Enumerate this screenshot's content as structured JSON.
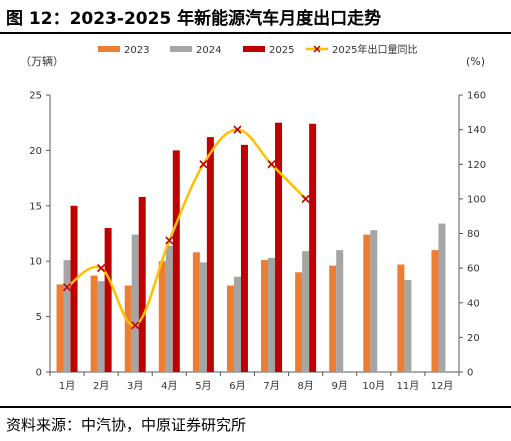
{
  "header": {
    "title": "图 12：2023-2025 年新能源汽车月度出口走势"
  },
  "footer": {
    "source": "资料来源：中汽协，中原证券研究所"
  },
  "colors": {
    "y2023": "#ED7D31",
    "y2024": "#A5A5A5",
    "y2025": "#C00000",
    "ratio_line": "#FFC000",
    "ratio_marker": "#C00000"
  },
  "chart_data": {
    "type": "bar",
    "title": "",
    "categories": [
      "1月",
      "2月",
      "3月",
      "4月",
      "5月",
      "6月",
      "7月",
      "8月",
      "9月",
      "10月",
      "11月",
      "12月"
    ],
    "y_left_unit": "（万辆）",
    "y_right_unit": "(%)",
    "ylim_left": [
      0,
      25
    ],
    "ylim_right": [
      0,
      160
    ],
    "yticks_left": [
      0,
      5,
      10,
      15,
      20,
      25
    ],
    "yticks_right": [
      0,
      20,
      40,
      60,
      80,
      100,
      120,
      140,
      160
    ],
    "legend_position": "top",
    "series": [
      {
        "name": "2023",
        "kind": "bar",
        "axis": "left",
        "values": [
          7.9,
          8.7,
          7.8,
          10.0,
          10.8,
          7.8,
          10.1,
          9.0,
          9.6,
          12.4,
          9.7,
          11.0
        ]
      },
      {
        "name": "2024",
        "kind": "bar",
        "axis": "left",
        "values": [
          10.1,
          8.2,
          12.4,
          11.4,
          9.9,
          8.6,
          10.3,
          10.9,
          11.0,
          12.8,
          8.3,
          13.4
        ]
      },
      {
        "name": "2025",
        "kind": "bar",
        "axis": "left",
        "values": [
          15.0,
          13.0,
          15.8,
          20.0,
          21.2,
          20.5,
          22.5,
          22.4,
          null,
          null,
          null,
          null
        ]
      },
      {
        "name": "2025年出口量同比",
        "kind": "line",
        "axis": "right",
        "values": [
          49,
          60,
          27,
          76,
          120,
          140,
          120,
          100,
          null,
          null,
          null,
          null
        ]
      }
    ]
  }
}
